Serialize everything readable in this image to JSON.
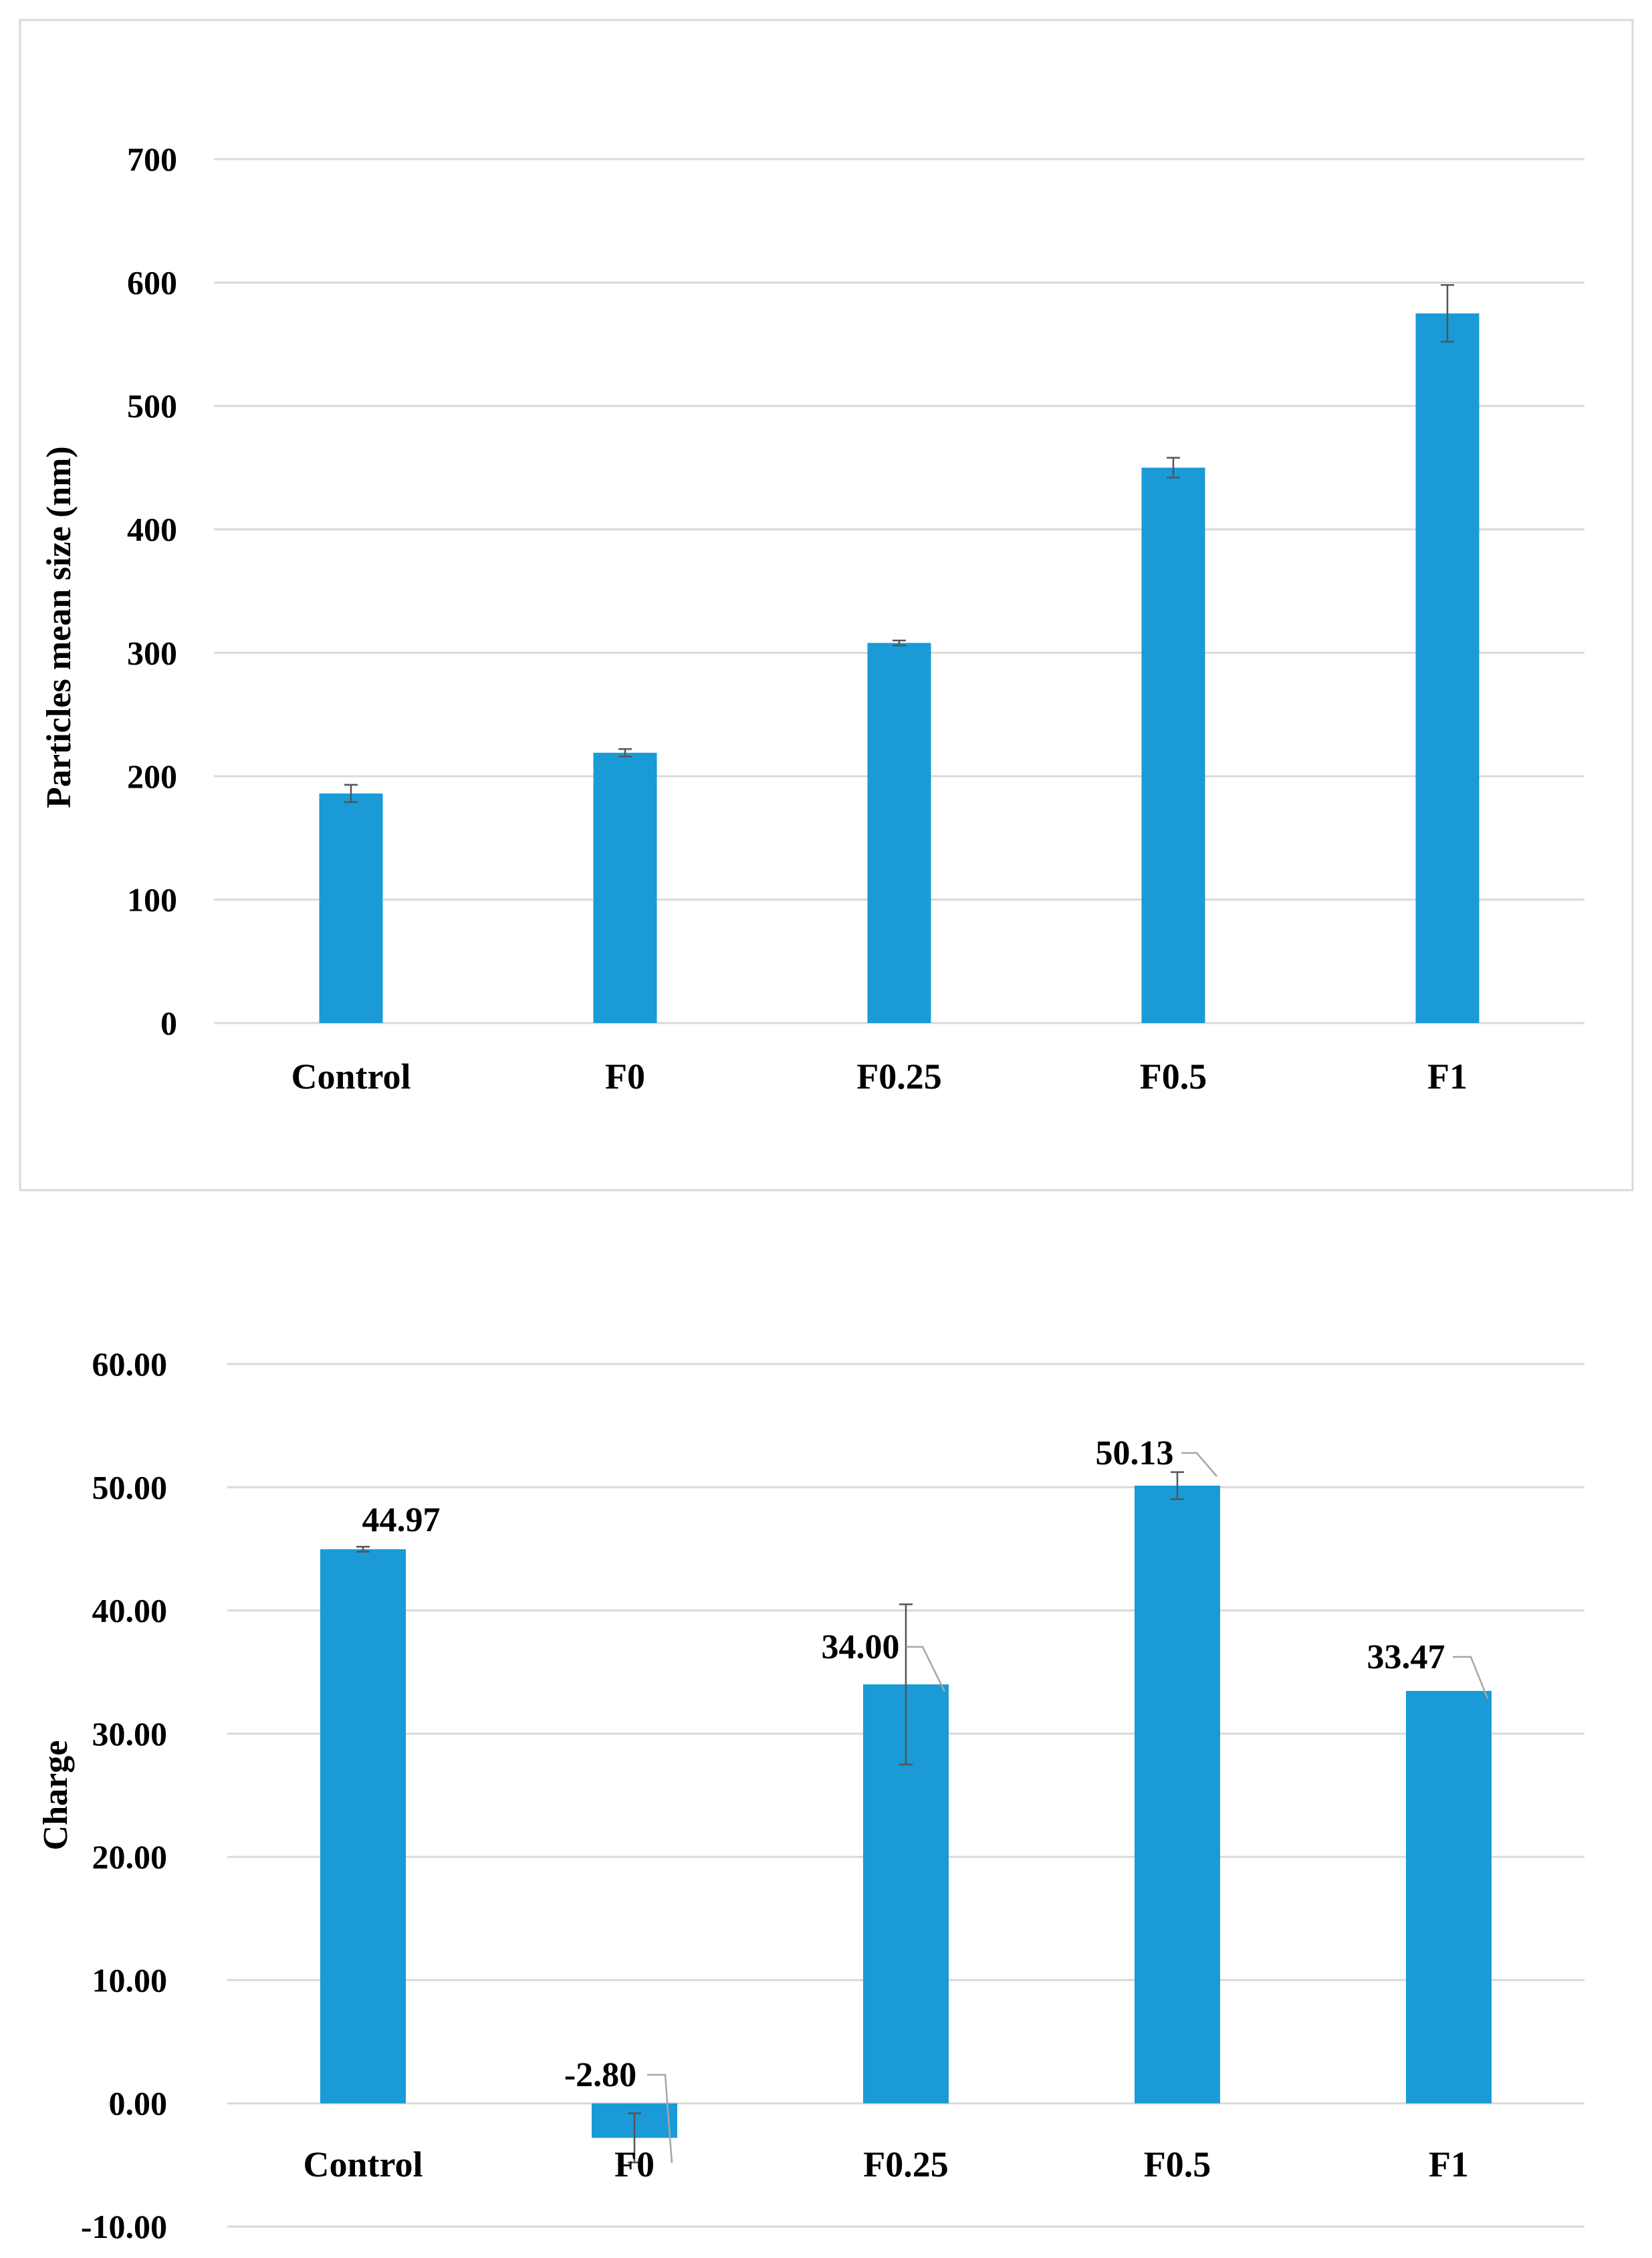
{
  "colors": {
    "bar": "#1a9ad6",
    "grid": "#d9d9d9",
    "frame": "#d9d9d9",
    "errorbar": "#555555",
    "leader": "#a6a6a6"
  },
  "chart_data": [
    {
      "type": "bar",
      "title": "",
      "xlabel": "",
      "ylabel": "Particles mean size (nm)",
      "ylim": [
        0,
        700
      ],
      "yticks": [
        0,
        100,
        200,
        300,
        400,
        500,
        600,
        700
      ],
      "ytick_labels": [
        "0",
        "100",
        "200",
        "300",
        "400",
        "500",
        "600",
        "700"
      ],
      "categories": [
        "Control",
        "F0",
        "F0.25",
        "F0.5",
        "F1"
      ],
      "values": [
        186,
        219,
        308,
        450,
        575
      ],
      "errors": [
        7,
        3,
        2,
        8,
        23
      ],
      "grid": true,
      "bordered": true
    },
    {
      "type": "bar",
      "title": "",
      "xlabel": "",
      "ylabel": "Charge",
      "ylim": [
        -10,
        60
      ],
      "yticks": [
        -10,
        0,
        10,
        20,
        30,
        40,
        50,
        60
      ],
      "ytick_labels": [
        "-10.00",
        "0.00",
        "10.00",
        "20.00",
        "30.00",
        "40.00",
        "50.00",
        "60.00"
      ],
      "categories": [
        "Control",
        "F0",
        "F0.25",
        "F0.5",
        "F1"
      ],
      "values": [
        44.97,
        -2.8,
        34.0,
        50.13,
        33.47
      ],
      "errors": [
        0.2,
        2.0,
        6.5,
        1.1,
        0
      ],
      "data_labels": [
        "44.97",
        "-2.80",
        "34.00",
        "50.13",
        "33.47"
      ],
      "grid": true,
      "bordered": false
    }
  ]
}
